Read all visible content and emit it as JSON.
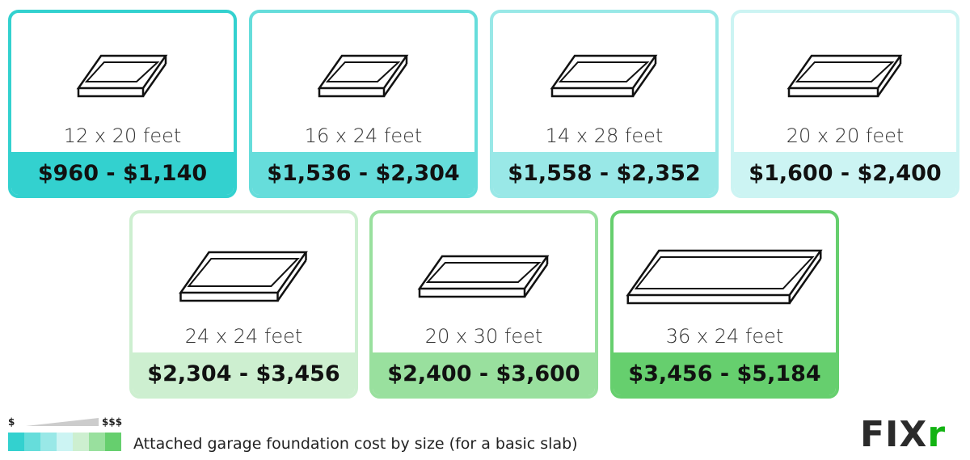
{
  "cards": [
    {
      "size": "12 x 20 feet",
      "price": "$960 - $1,140",
      "color": "#33d1cf"
    },
    {
      "size": "16 x 24 feet",
      "price": "$1,536 - $2,304",
      "color": "#66dddb"
    },
    {
      "size": "14 x 28 feet",
      "price": "$1,558 - $2,352",
      "color": "#99e8e7"
    },
    {
      "size": "20 x 20 feet",
      "price": "$1,600 - $2,400",
      "color": "#ccf4f3"
    },
    {
      "size": "24 x 24 feet",
      "price": "$2,304 - $3,456",
      "color": "#cdefd0"
    },
    {
      "size": "20 x 30 feet",
      "price": "$2,400 - $3,600",
      "color": "#99e09e"
    },
    {
      "size": "36 x 24 feet",
      "price": "$3,456 - $5,184",
      "color": "#66cf6e"
    }
  ],
  "legend": {
    "low": "$",
    "high": "$$$",
    "caption": "Attached garage foundation cost by size (for a basic slab)"
  },
  "logo": {
    "text": "FIX",
    "accent": "r"
  }
}
